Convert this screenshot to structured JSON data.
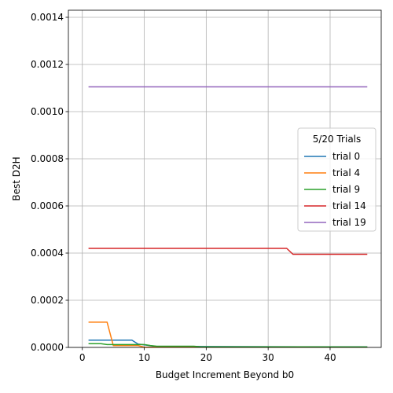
{
  "chart_data": {
    "type": "line",
    "xlabel": "Budget Increment Beyond b0",
    "ylabel": "Best D2H",
    "xlim": [
      -2.25,
      48.25
    ],
    "ylim": [
      0,
      0.00143
    ],
    "xticks": [
      0,
      10,
      20,
      30,
      40
    ],
    "yticks": [
      0.0,
      0.0002,
      0.0004,
      0.0006,
      0.0008,
      0.001,
      0.0012,
      0.0014
    ],
    "ytick_labels": [
      "0.0000",
      "0.0002",
      "0.0004",
      "0.0006",
      "0.0008",
      "0.0010",
      "0.0012",
      "0.0014"
    ],
    "xtick_labels": [
      "0",
      "10",
      "20",
      "30",
      "40"
    ],
    "grid": true,
    "legend": {
      "title": "5/20 Trials",
      "placement": "center-right"
    },
    "series": [
      {
        "name": "trial 0",
        "color": "#1f77b4",
        "x": [
          1,
          8,
          9,
          10,
          11,
          12,
          46
        ],
        "y": [
          3.1e-05,
          3.1e-05,
          1.4e-05,
          1.1e-05,
          7e-06,
          4e-06,
          2e-06
        ]
      },
      {
        "name": "trial 4",
        "color": "#ff7f0e",
        "x": [
          1,
          4,
          5,
          9,
          10,
          11,
          46
        ],
        "y": [
          0.000107,
          0.000107,
          8e-06,
          8e-06,
          1e-06,
          1e-06,
          1e-06
        ]
      },
      {
        "name": "trial 9",
        "color": "#2ca02c",
        "x": [
          1,
          3,
          4,
          10,
          11,
          12,
          18,
          19,
          46
        ],
        "y": [
          1.6e-05,
          1.6e-05,
          1.2e-05,
          1.2e-05,
          8e-06,
          5e-06,
          5e-06,
          3e-06,
          2e-06
        ]
      },
      {
        "name": "trial 14",
        "color": "#d62728",
        "x": [
          1,
          33,
          34,
          46
        ],
        "y": [
          0.00042,
          0.00042,
          0.000395,
          0.000395
        ]
      },
      {
        "name": "trial 19",
        "color": "#9467bd",
        "x": [
          1,
          46
        ],
        "y": [
          0.001105,
          0.001105
        ]
      }
    ]
  }
}
